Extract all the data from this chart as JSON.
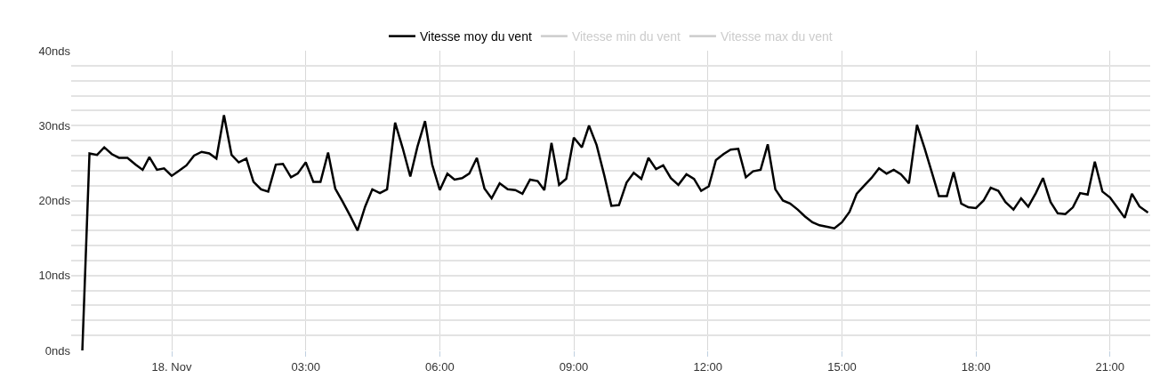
{
  "chart_data": {
    "type": "line",
    "x": [
      -2.0,
      -1.84,
      -1.67,
      -1.51,
      -1.34,
      -1.18,
      -0.99,
      -0.81,
      -0.65,
      -0.5,
      -0.33,
      -0.17,
      0,
      0.17,
      0.33,
      0.5,
      0.67,
      0.84,
      1.0,
      1.17,
      1.34,
      1.5,
      1.67,
      1.83,
      2.0,
      2.16,
      2.33,
      2.49,
      2.67,
      2.82,
      3.0,
      3.17,
      3.33,
      3.5,
      3.66,
      3.83,
      4.0,
      4.16,
      4.33,
      4.49,
      4.66,
      4.82,
      5.0,
      5.17,
      5.34,
      5.5,
      5.67,
      5.83,
      6.0,
      6.17,
      6.33,
      6.5,
      6.66,
      6.83,
      7.0,
      7.16,
      7.34,
      7.52,
      7.69,
      7.85,
      8.02,
      8.19,
      8.34,
      8.5,
      8.67,
      8.83,
      9.0,
      9.18,
      9.34,
      9.51,
      9.68,
      9.84,
      10.01,
      10.18,
      10.34,
      10.51,
      10.67,
      10.84,
      11.0,
      11.17,
      11.34,
      11.52,
      11.69,
      11.85,
      12.02,
      12.18,
      12.35,
      12.51,
      12.68,
      12.85,
      13.01,
      13.18,
      13.34,
      13.51,
      13.68,
      13.84,
      14.01,
      14.17,
      14.34,
      14.5,
      14.67,
      14.83,
      15.0,
      15.17,
      15.33,
      15.5,
      15.66,
      15.83,
      16.0,
      16.16,
      16.32,
      16.5,
      16.68,
      16.85,
      17.01,
      17.17,
      17.35,
      17.5,
      17.67,
      17.83,
      18.0,
      18.17,
      18.33,
      18.5,
      18.66,
      18.84,
      19.01,
      19.17,
      19.34,
      19.5,
      19.67,
      19.83,
      20.0,
      20.17,
      20.33,
      20.5,
      20.66,
      20.83,
      21.0,
      21.16,
      21.33,
      21.49,
      21.66,
      21.85
    ],
    "series": [
      {
        "name": "Vitesse moy du vent",
        "color": "#000000",
        "values": [
          0,
          26.3,
          26.1,
          27.1,
          26.2,
          25.7,
          25.7,
          24.8,
          24.1,
          25.8,
          24.1,
          24.3,
          23.3,
          24.0,
          24.7,
          26.0,
          26.5,
          26.3,
          25.6,
          31.4,
          26.1,
          25.1,
          25.6,
          22.5,
          21.5,
          21.2,
          24.8,
          24.9,
          23.1,
          23.6,
          25.1,
          22.5,
          22.5,
          26.4,
          21.6,
          19.8,
          17.9,
          16.0,
          19.2,
          21.5,
          21.0,
          21.5,
          30.4,
          27.0,
          23.2,
          27.2,
          30.6,
          24.8,
          21.4,
          23.6,
          22.8,
          23.0,
          23.6,
          25.7,
          21.6,
          20.3,
          22.3,
          21.5,
          21.4,
          20.9,
          22.8,
          22.6,
          21.4,
          27.7,
          22.1,
          22.9,
          28.4,
          27.1,
          30.0,
          27.4,
          23.4,
          19.3,
          19.4,
          22.4,
          23.7,
          22.9,
          25.7,
          24.2,
          24.7,
          23.0,
          22.1,
          23.5,
          22.9,
          21.3,
          21.9,
          25.4,
          26.2,
          26.8,
          26.9,
          23.1,
          23.9,
          24.1,
          27.5,
          21.5,
          20.0,
          19.6,
          18.8,
          17.9,
          17.1,
          16.7,
          16.5,
          16.3,
          17.1,
          18.5,
          20.9,
          22.0,
          23.0,
          24.3,
          23.6,
          24.1,
          23.5,
          22.3,
          30.1,
          27.0,
          23.8,
          20.6,
          20.6,
          23.8,
          19.6,
          19.1,
          19.0,
          20.0,
          21.7,
          21.3,
          19.8,
          18.8,
          20.3,
          19.2,
          21.0,
          23.0,
          19.8,
          18.3,
          18.2,
          19.1,
          21.0,
          20.8,
          25.2,
          21.2,
          20.4,
          19.1,
          17.7,
          20.9,
          19.2,
          18.4
        ]
      },
      {
        "name": "Vitesse min du vent",
        "color": "#cccccc",
        "values": [
          null,
          null,
          null,
          null,
          null,
          null,
          null,
          null,
          null,
          null,
          null,
          null,
          null,
          null,
          null,
          null,
          null,
          null,
          null,
          null,
          null,
          null,
          null,
          null,
          null,
          null,
          null,
          null,
          null,
          null,
          null,
          null,
          null,
          null,
          null,
          null,
          null,
          null,
          null,
          null,
          null,
          null,
          null,
          null,
          null,
          null,
          null,
          null,
          null,
          null,
          null,
          null,
          null,
          null,
          null,
          null,
          null,
          null,
          null,
          null,
          null,
          null,
          null,
          null,
          null,
          null,
          null,
          null,
          null,
          null,
          null,
          null,
          null,
          null,
          null,
          null,
          null,
          null,
          null,
          null,
          null,
          null,
          null,
          null,
          null,
          null,
          null,
          null,
          null,
          null,
          null,
          null,
          null,
          null,
          null,
          null,
          null,
          null,
          null,
          null,
          null,
          null,
          null,
          null,
          null,
          null,
          null,
          null,
          null,
          null,
          null,
          null,
          null,
          null,
          null,
          null,
          null,
          null,
          null,
          null,
          null,
          null,
          null,
          null,
          null,
          null,
          null,
          null,
          null,
          null,
          null,
          null,
          null,
          null,
          null,
          null,
          null,
          null,
          null,
          null,
          null,
          null,
          null,
          null
        ]
      },
      {
        "name": "Vitesse max du vent",
        "color": "#cccccc",
        "values": [
          null,
          null,
          null,
          null,
          null,
          null,
          null,
          null,
          null,
          null,
          null,
          null,
          null,
          null,
          null,
          null,
          null,
          null,
          null,
          null,
          null,
          null,
          null,
          null,
          null,
          null,
          null,
          null,
          null,
          null,
          null,
          null,
          null,
          null,
          null,
          null,
          null,
          null,
          null,
          null,
          null,
          null,
          null,
          null,
          null,
          null,
          null,
          null,
          null,
          null,
          null,
          null,
          null,
          null,
          null,
          null,
          null,
          null,
          null,
          null,
          null,
          null,
          null,
          null,
          null,
          null,
          null,
          null,
          null,
          null,
          null,
          null,
          null,
          null,
          null,
          null,
          null,
          null,
          null,
          null,
          null,
          null,
          null,
          null,
          null,
          null,
          null,
          null,
          null,
          null,
          null,
          null,
          null,
          null,
          null,
          null,
          null,
          null,
          null,
          null,
          null,
          null,
          null,
          null,
          null,
          null,
          null,
          null,
          null,
          null,
          null,
          null,
          null,
          null,
          null,
          null,
          null,
          null,
          null,
          null,
          null,
          null,
          null,
          null,
          null,
          null,
          null,
          null,
          null,
          null,
          null,
          null,
          null,
          null,
          null,
          null,
          null,
          null,
          null,
          null,
          null,
          null,
          null,
          null
        ]
      }
    ],
    "xlim": [
      -2.25,
      21.9
    ],
    "xticks": [
      {
        "value": 0,
        "label": "18. Nov"
      },
      {
        "value": 3,
        "label": "03:00"
      },
      {
        "value": 6,
        "label": "06:00"
      },
      {
        "value": 9,
        "label": "09:00"
      },
      {
        "value": 12,
        "label": "12:00"
      },
      {
        "value": 15,
        "label": "15:00"
      },
      {
        "value": 18,
        "label": "18:00"
      },
      {
        "value": 21,
        "label": "21:00"
      }
    ],
    "ylim": [
      0,
      40
    ],
    "yticks": [
      {
        "value": 0,
        "label": "0nds"
      },
      {
        "value": 2,
        "label": null
      },
      {
        "value": 4,
        "label": null
      },
      {
        "value": 6,
        "label": null
      },
      {
        "value": 8,
        "label": null
      },
      {
        "value": 10,
        "label": "10nds"
      },
      {
        "value": 12,
        "label": null
      },
      {
        "value": 14,
        "label": null
      },
      {
        "value": 16,
        "label": null
      },
      {
        "value": 18,
        "label": null
      },
      {
        "value": 20,
        "label": "20nds"
      },
      {
        "value": 22,
        "label": null
      },
      {
        "value": 24,
        "label": null
      },
      {
        "value": 26,
        "label": null
      },
      {
        "value": 28,
        "label": null
      },
      {
        "value": 30,
        "label": "30nds"
      },
      {
        "value": 32,
        "label": null
      },
      {
        "value": 34,
        "label": null
      },
      {
        "value": 36,
        "label": null
      },
      {
        "value": 38,
        "label": null
      },
      {
        "value": 40,
        "label": "40nds"
      }
    ],
    "grid": true,
    "legend": "top",
    "marker": "none",
    "line_style": "solid"
  }
}
